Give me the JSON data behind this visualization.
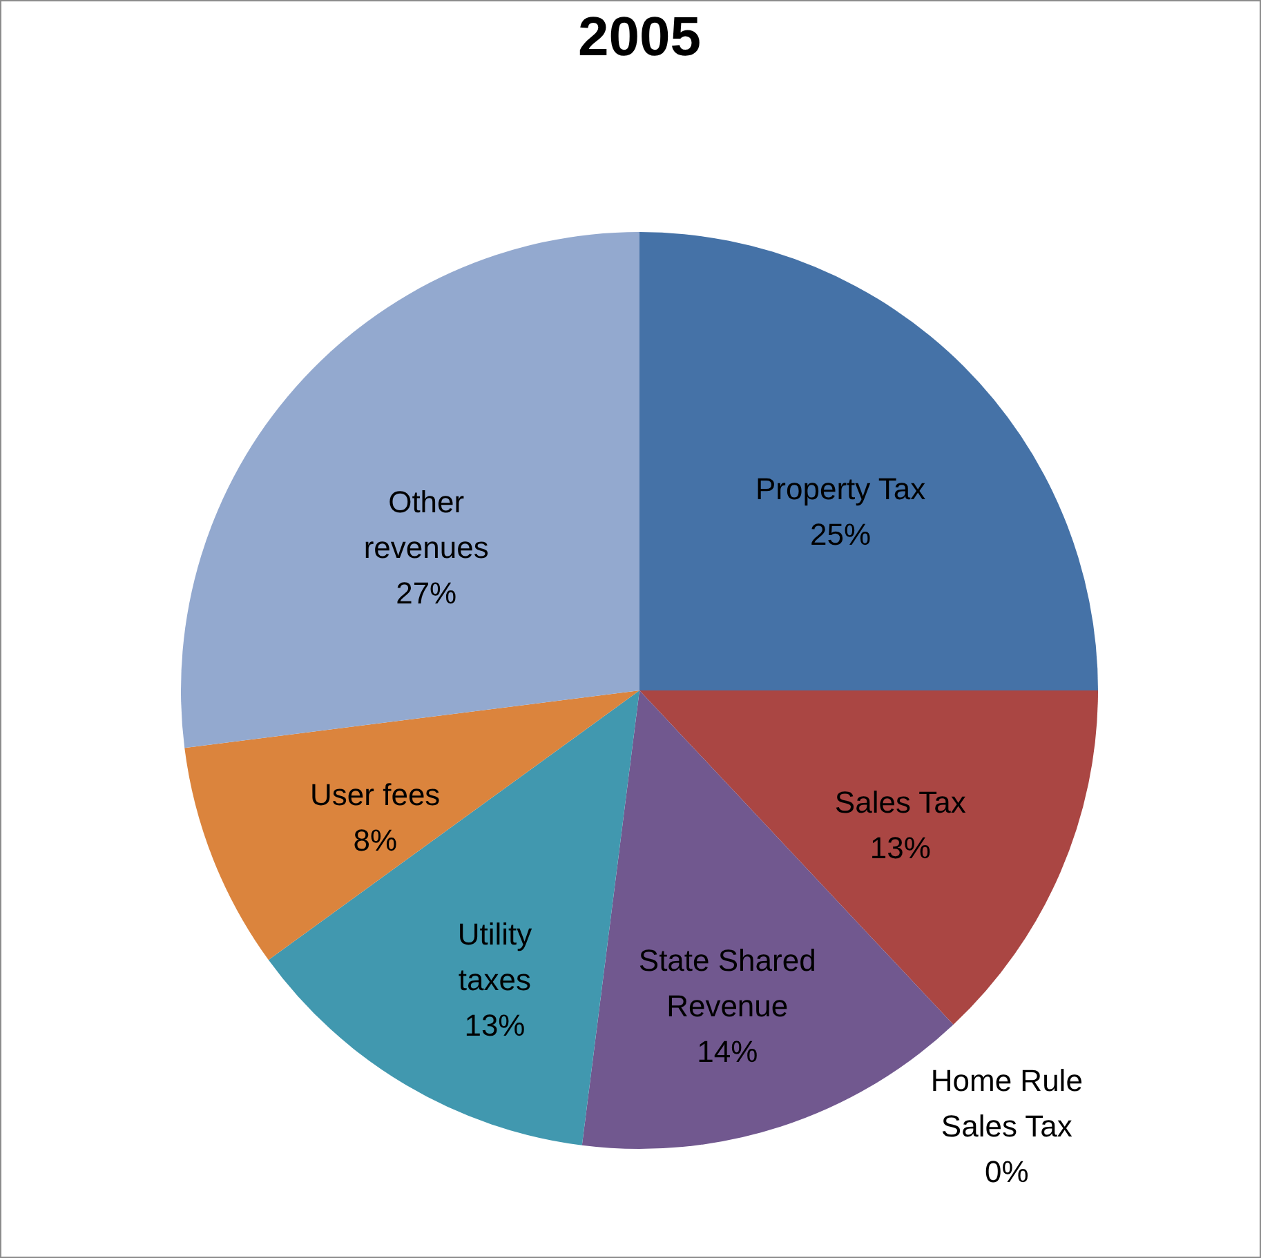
{
  "chart_data": {
    "type": "pie",
    "title": "2005",
    "categories": [
      "Property Tax",
      "Sales Tax",
      "Home Rule Sales Tax",
      "State Shared Revenue",
      "Utility taxes",
      "User fees",
      "Other revenues"
    ],
    "values": [
      25,
      13,
      0,
      14,
      13,
      8,
      27
    ],
    "value_labels": [
      "25%",
      "13%",
      "0%",
      "14%",
      "13%",
      "8%",
      "27%"
    ],
    "colors": [
      "#4572a7",
      "#aa4643",
      "#89a54e",
      "#71588f",
      "#4198af",
      "#db843d",
      "#93a9cf"
    ],
    "legend": false
  }
}
